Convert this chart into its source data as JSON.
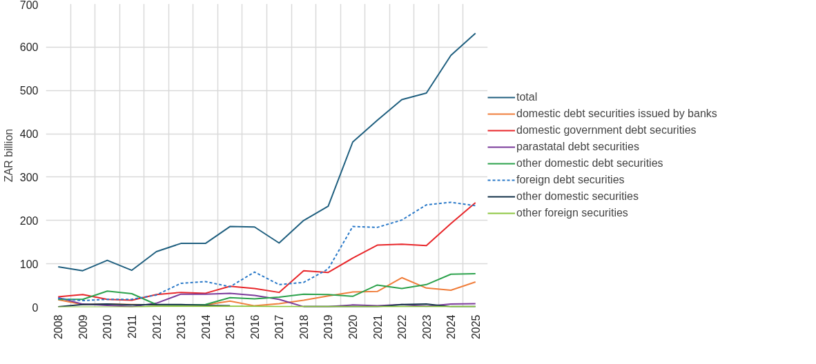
{
  "chart_data": {
    "type": "line",
    "ylabel": "ZAR billion",
    "categories": [
      "2008",
      "2009",
      "2010",
      "2011",
      "2012",
      "2013",
      "2014",
      "2015",
      "2016",
      "2017",
      "2018",
      "2019",
      "2020",
      "2021",
      "2022",
      "2023",
      "2024",
      "2025"
    ],
    "ylim": [
      0,
      700
    ],
    "yticks": [
      0,
      100,
      200,
      300,
      400,
      500,
      600,
      700
    ],
    "grid": true,
    "legend": "right",
    "series": [
      {
        "name": "total",
        "color": "#1f5f7f",
        "values": [
          93,
          84,
          108,
          85,
          128,
          147,
          147,
          186,
          185,
          148,
          200,
          233,
          381,
          431,
          479,
          494,
          581,
          632
        ]
      },
      {
        "name": "domestic debt securities issued by banks",
        "color": "#f07d3a",
        "values": [
          17,
          6,
          7,
          6,
          5,
          5,
          5,
          14,
          3,
          8,
          16,
          26,
          35,
          36,
          68,
          44,
          39,
          58
        ]
      },
      {
        "name": "domestic government debt securities",
        "color": "#e8262a",
        "values": [
          24,
          29,
          18,
          16,
          29,
          34,
          32,
          48,
          43,
          34,
          84,
          80,
          113,
          143,
          145,
          142,
          193,
          241
        ]
      },
      {
        "name": "parastatal debt securities",
        "color": "#7a3a9a",
        "values": [
          22,
          7,
          4,
          1,
          9,
          30,
          30,
          32,
          27,
          18,
          1,
          1,
          5,
          3,
          6,
          2,
          7,
          8
        ]
      },
      {
        "name": "other domestic debt securities",
        "color": "#2ca24c",
        "values": [
          18,
          18,
          37,
          31,
          6,
          5,
          6,
          22,
          19,
          23,
          30,
          29,
          25,
          51,
          43,
          52,
          76,
          77
        ]
      },
      {
        "name": "foreign debt securities",
        "color": "#2878c8",
        "line_style": "dashed",
        "values": [
          20,
          15,
          18,
          18,
          28,
          55,
          59,
          47,
          81,
          52,
          57,
          88,
          186,
          184,
          201,
          236,
          242,
          234
        ]
      },
      {
        "name": "other domestic securities",
        "color": "#14324a",
        "values": [
          1,
          6,
          7,
          5,
          6,
          6,
          4,
          3,
          null,
          null,
          1,
          1,
          1,
          1,
          6,
          7,
          1,
          1
        ]
      },
      {
        "name": "other foreign securities",
        "color": "#8cc63f",
        "values": [
          0,
          0,
          0,
          0,
          2,
          2,
          2,
          2,
          2,
          1,
          1,
          1,
          1,
          1,
          1,
          1,
          1,
          1
        ]
      }
    ]
  }
}
